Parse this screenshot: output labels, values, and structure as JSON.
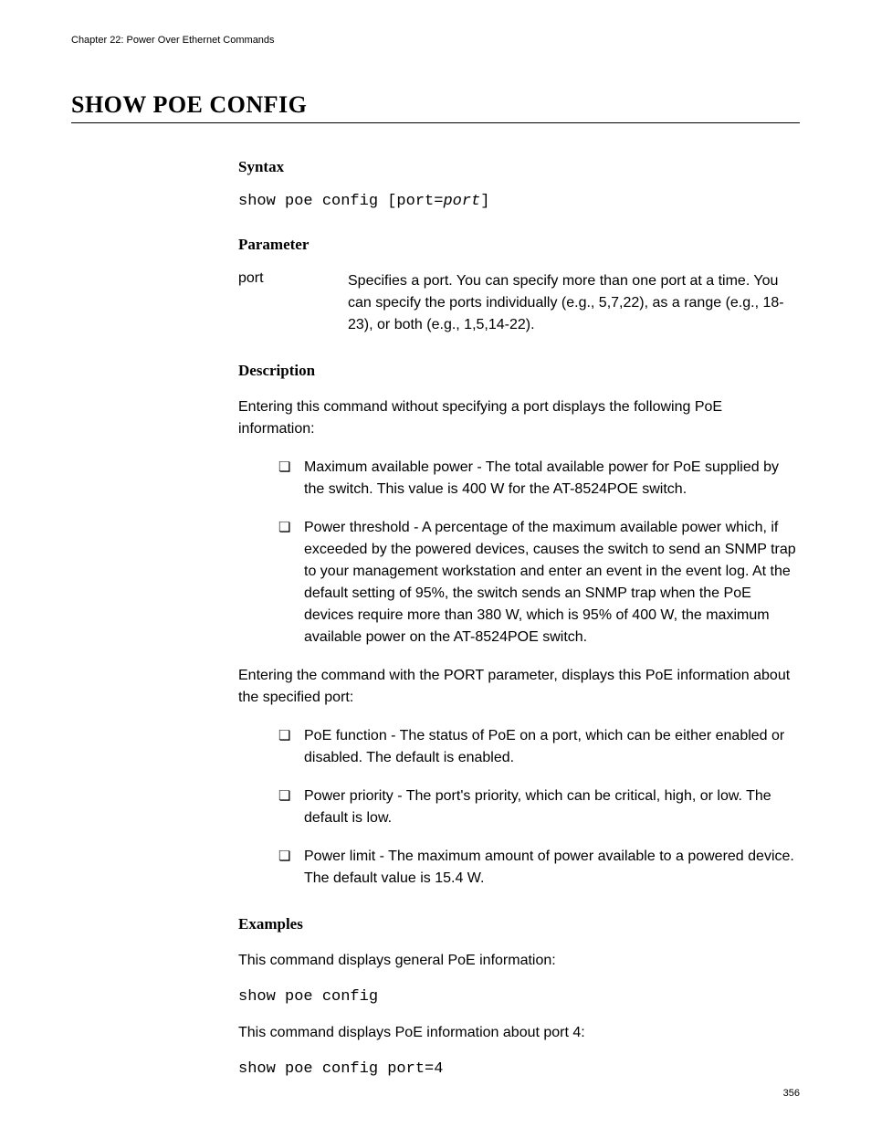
{
  "chapter_header": "Chapter 22: Power Over Ethernet Commands",
  "command_title": "SHOW POE CONFIG",
  "syntax": {
    "heading": "Syntax",
    "code_prefix": "show poe config [port=",
    "code_italic": "port",
    "code_suffix": "]"
  },
  "parameter": {
    "heading": "Parameter",
    "name": "port",
    "description": "Specifies a port. You can specify more than one port at a time. You can specify the ports individually (e.g., 5,7,22), as a range (e.g., 18-23), or both (e.g., 1,5,14-22)."
  },
  "description": {
    "heading": "Description",
    "intro1": "Entering this command without specifying a port displays the following PoE information:",
    "bullets1": [
      "Maximum available power - The total available power for PoE supplied by the switch. This value is 400 W for the AT-8524POE switch.",
      "Power threshold - A percentage of the maximum available power which, if exceeded by the powered devices, causes the switch to send an SNMP trap to your management workstation and enter an event in the event log. At the default setting of 95%, the switch sends an SNMP trap when the PoE devices require more than 380 W, which is 95% of 400 W, the maximum available power on the AT-8524POE switch."
    ],
    "intro2": "Entering the command with the PORT parameter, displays this PoE information about the specified port:",
    "bullets2": [
      "PoE function - The status of PoE on a port, which can be either enabled or disabled. The default is enabled.",
      "Power priority - The port's priority, which can be critical, high, or low. The default is low.",
      "Power limit - The maximum amount of power available to a powered device. The default value is 15.4 W."
    ]
  },
  "examples": {
    "heading": "Examples",
    "intro1": "This command displays general PoE information:",
    "code1": "show poe config",
    "intro2": "This command displays PoE information about port 4:",
    "code2": "show poe config port=4"
  },
  "page_number": "356",
  "bullet_char": "❏"
}
